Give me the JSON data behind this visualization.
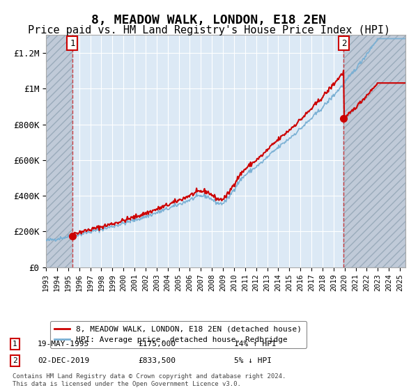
{
  "title": "8, MEADOW WALK, LONDON, E18 2EN",
  "subtitle": "Price paid vs. HM Land Registry's House Price Index (HPI)",
  "title_fontsize": 13,
  "subtitle_fontsize": 11,
  "ylim": [
    0,
    1300000
  ],
  "yticks": [
    0,
    200000,
    400000,
    600000,
    800000,
    1000000,
    1200000
  ],
  "ytick_labels": [
    "£0",
    "£200K",
    "£400K",
    "£600K",
    "£800K",
    "£1M",
    "£1.2M"
  ],
  "line1_color": "#cc0000",
  "line2_color": "#7ab0d4",
  "bg_color": "#dce9f5",
  "marker_color": "#cc0000",
  "annotation_box_color": "#cc0000",
  "sale1_year": 1995.38,
  "sale1_price": 175000,
  "sale2_year": 2019.92,
  "sale2_price": 833500,
  "xmin": 1993,
  "xmax": 2025.5,
  "legend_label1": "8, MEADOW WALK, LONDON, E18 2EN (detached house)",
  "legend_label2": "HPI: Average price, detached house, Redbridge",
  "annot1_label": "1",
  "annot1_date": "19-MAY-1995",
  "annot1_price": "£175,000",
  "annot1_hpi": "14% ↑ HPI",
  "annot2_label": "2",
  "annot2_date": "02-DEC-2019",
  "annot2_price": "£833,500",
  "annot2_hpi": "5% ↓ HPI",
  "footnote": "Contains HM Land Registry data © Crown copyright and database right 2024.\nThis data is licensed under the Open Government Licence v3.0."
}
